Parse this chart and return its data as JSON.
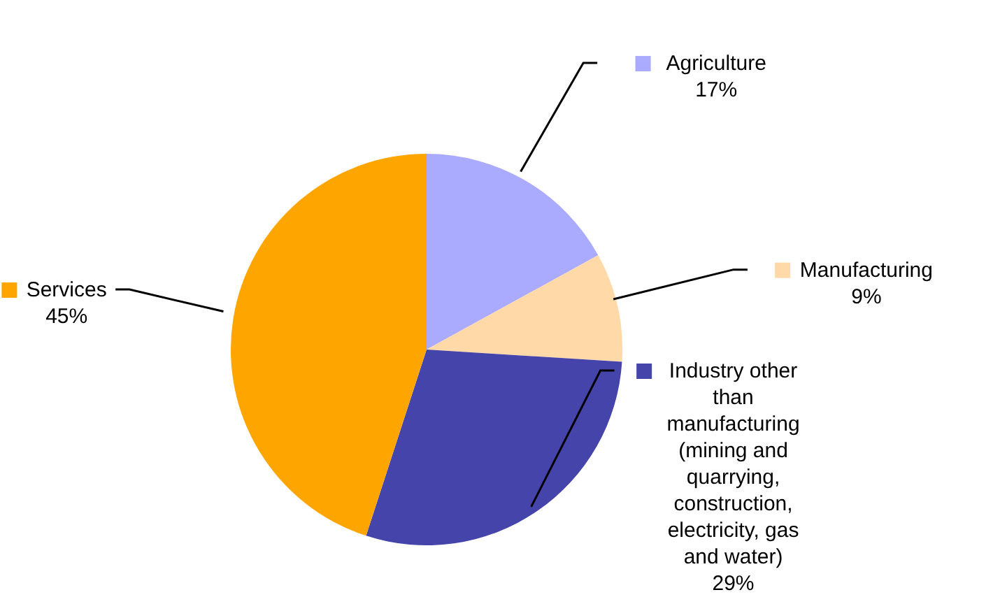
{
  "chart_data": {
    "type": "pie",
    "categories": [
      "Agriculture",
      "Manufacturing",
      "Industry other than manufacturing (mining and quarrying, construction, electricity, gas and water)",
      "Services"
    ],
    "values": [
      17,
      9,
      29,
      45
    ],
    "value_labels": [
      "17%",
      "9%",
      "29%",
      "45%"
    ],
    "colors": [
      "#aaaaff",
      "#ffd9a8",
      "#4444aa",
      "#ffa500"
    ],
    "legend": "right"
  }
}
